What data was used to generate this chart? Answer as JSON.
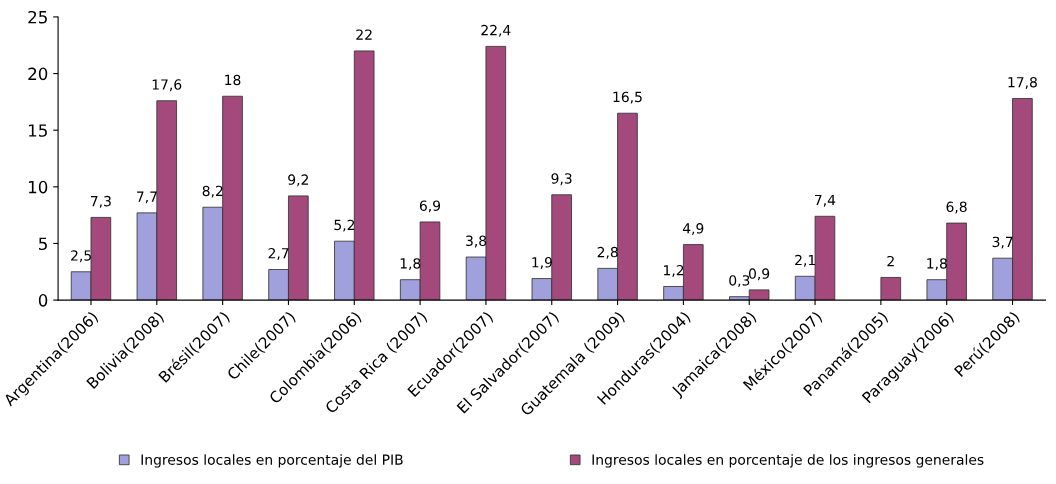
{
  "chart_data": {
    "type": "bar",
    "categories": [
      "Argentina(2006)",
      "Bolivia(2008)",
      "Brésil(2007)",
      "Chile(2007)",
      "Colombia(2006)",
      "Costa Rica (2007)",
      "Ecuador(2007)",
      "El Salvador(2007)",
      "Guatemala (2009)",
      "Honduras(2004)",
      "Jamaica(2008)",
      "México(2007)",
      "Panamá(2005)",
      "Paraguay(2006)",
      "Perú(2008)"
    ],
    "series": [
      {
        "name": "Ingresos locales en porcentaje del PIB",
        "color": "#a0a0dc",
        "values": [
          2.5,
          7.7,
          8.2,
          2.7,
          5.2,
          1.8,
          3.8,
          1.9,
          2.8,
          1.2,
          0.3,
          2.1,
          null,
          1.8,
          3.7
        ],
        "value_labels": [
          "2,5",
          "7,7",
          "8,2",
          "2,7",
          "5,2",
          "1,8",
          "3,8",
          "1,9",
          "2,8",
          "1,2",
          "0,3",
          "2,1",
          null,
          "1,8",
          "3,7"
        ]
      },
      {
        "name": "Ingresos locales en porcentaje de los ingresos generales",
        "color": "#a4497c",
        "values": [
          7.3,
          17.6,
          18,
          9.2,
          22,
          6.9,
          22.4,
          9.3,
          16.5,
          4.9,
          0.9,
          7.4,
          2,
          6.8,
          17.8
        ],
        "value_labels": [
          "7,3",
          "17,6",
          "18",
          "9,2",
          "22",
          "6,9",
          "22,4",
          "9,3",
          "16,5",
          "4,9",
          "0,9",
          "7,4",
          "2",
          "6,8",
          "17,8"
        ]
      }
    ],
    "ylim": [
      0,
      25
    ],
    "yticks": [
      0,
      5,
      10,
      15,
      20,
      25
    ],
    "grid": false,
    "legend": "bottom"
  }
}
